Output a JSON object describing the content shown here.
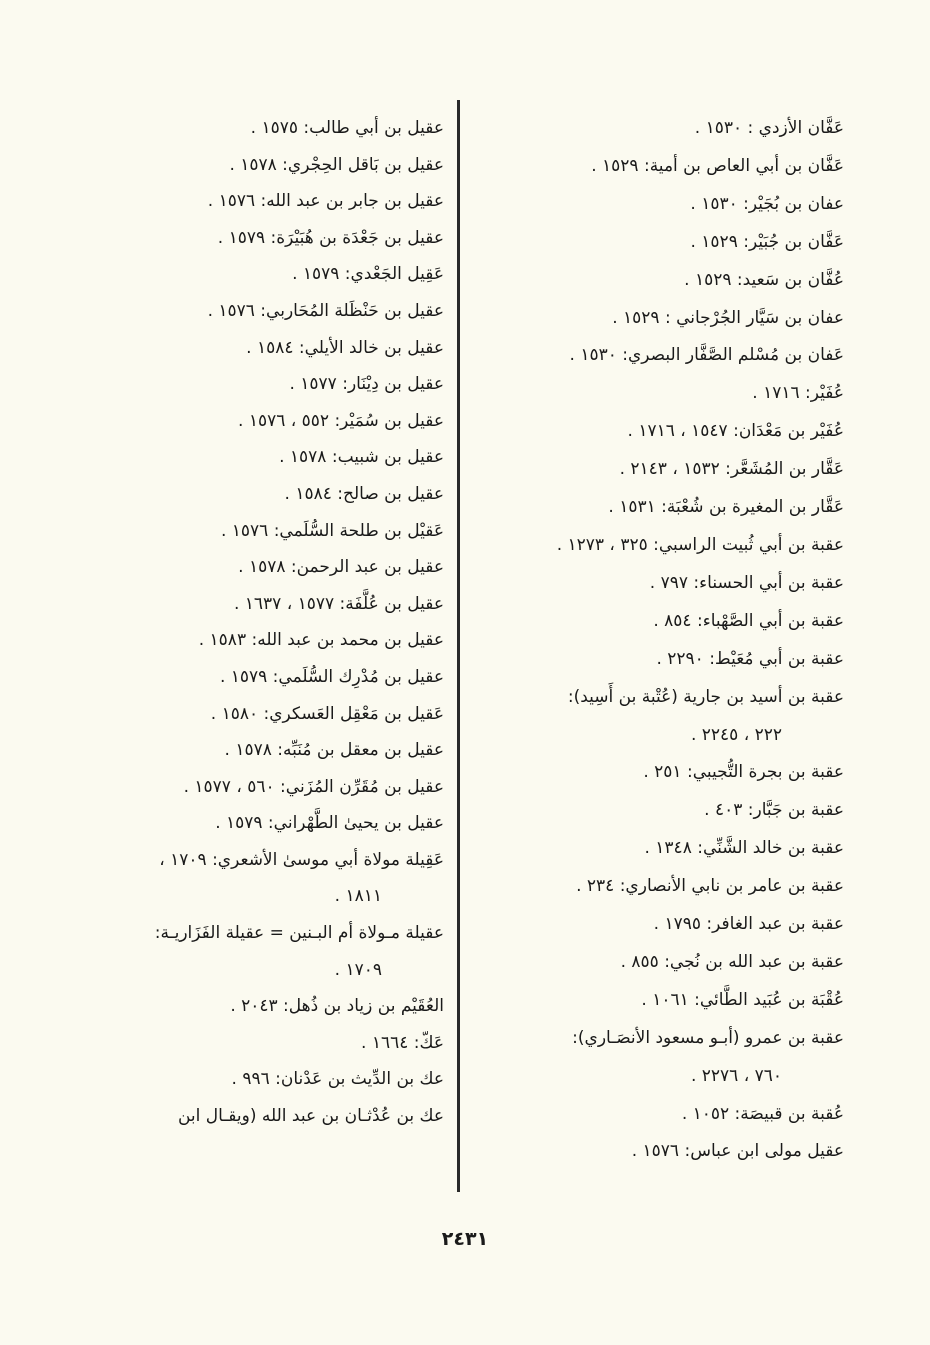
{
  "right_column": [
    {
      "text": "عَفَّان الأزدي : ١٥٣٠ ."
    },
    {
      "text": "عَفَّان بن أبي العاص بن أمية: ١٥٢٩ ."
    },
    {
      "text": "عفان بن بُجَيْر: ١٥٣٠ ."
    },
    {
      "text": "عَفَّان بن جُبَيْر: ١٥٢٩ ."
    },
    {
      "text": "عُفَّان بن سَعيد: ١٥٢٩ ."
    },
    {
      "text": "عفان بن سَيَّار الجُرْجاني : ١٥٢٩ ."
    },
    {
      "text": "عَفان بن مُسْلم الصَّفَّار البصري: ١٥٣٠ ."
    },
    {
      "text": "عُفَيْر: ١٧١٦ ."
    },
    {
      "text": "عُفَيْر بن مَعْدَان: ١٥٤٧ ، ١٧١٦ ."
    },
    {
      "text": "عَقَّار بن المُشَعَّر: ١٥٣٢ ، ٢١٤٣ ."
    },
    {
      "text": "عَقَّار بن المغيرة بن شُعْبَة: ١٥٣١ ."
    },
    {
      "text": "عقبة بن أبي ثُبيت الراسبي: ٣٢٥ ، ١٢٧٣ ."
    },
    {
      "text": "عقبة بن أبي الحسناء: ٧٩٧ ."
    },
    {
      "text": "عقبة بن أبي الصَّهْباء: ٨٥٤ ."
    },
    {
      "text": "عقبة بن أبي مُعَيْط: ٢٢٩٠ ."
    },
    {
      "text": "عقبة بن أسيد بن جارية (عُتْبة بن أَسِيد):",
      "cont": "٢٢٢ ، ٢٢٤٥ ."
    },
    {
      "text": "عقبة بن بجرة التُّجيبي: ٢٥١ ."
    },
    {
      "text": "عقبة بن جَبَّار: ٤٠٣ ."
    },
    {
      "text": "عقبة بن خالد الشَّنِّي: ١٣٤٨ ."
    },
    {
      "text": "عقبة بن عامر بن نابي الأنصاري: ٢٣٤ ."
    },
    {
      "text": "عقبة بن عبد الغافر: ١٧٩٥ ."
    },
    {
      "text": "عقبة بن عبد الله بن نُجي: ٨٥٥ ."
    },
    {
      "text": "عُقْبَة بن عُبَيد الطَّائي: ١٠٦١ ."
    },
    {
      "text": "عقبة بن عمرو (أبـو مسعود الأنصَـاري):",
      "cont": "٧٦٠ ، ٢٢٧٦ ."
    },
    {
      "text": "عُقبة بن قبيصَة: ١٠٥٢ ."
    },
    {
      "text": "عقيل مولى ابن عباس: ١٥٧٦ ."
    }
  ],
  "left_column": [
    {
      "text": "عقيل بن أبي طالب: ١٥٧٥ ."
    },
    {
      "text": "عقيل بن بَاقل الحِجْري: ١٥٧٨ ."
    },
    {
      "text": "عقيل بن جابر بن عبد الله: ١٥٧٦ ."
    },
    {
      "text": "عقيل بن جَعْدَة بن هُبَيْرَة: ١٥٧٩ ."
    },
    {
      "text": "عَقِيل الجَعْدي: ١٥٧٩ ."
    },
    {
      "text": "عقيل بن حَنْظَلة المُحَاربي: ١٥٧٦ ."
    },
    {
      "text": "عقيل بن خالد الأيلي: ١٥٨٤ ."
    },
    {
      "text": "عقيل بن دِيْنَار: ١٥٧٧ ."
    },
    {
      "text": "عقيل بن سُمَيْر: ٥٥٢ ، ١٥٧٦ ."
    },
    {
      "text": "عقيل بن شبيب: ١٥٧٨ ."
    },
    {
      "text": "عقيل بن صالح: ١٥٨٤ ."
    },
    {
      "text": "عَقيْل بن طلحة السُّلَمي: ١٥٧٦ ."
    },
    {
      "text": "عقيل بن عبد الرحمن: ١٥٧٨ ."
    },
    {
      "text": "عقيل بن عُلَّفَة: ١٥٧٧ ، ١٦٣٧ ."
    },
    {
      "text": "عقيل بن محمد بن عبد الله: ١٥٨٣ ."
    },
    {
      "text": "عقيل بن مُدْرِك السُّلَمي: ١٥٧٩ ."
    },
    {
      "text": "عَقيل بن مَعْقِل العَسكري: ١٥٨٠ ."
    },
    {
      "text": "عقيل بن معقل بن مُنَبِّه: ١٥٧٨ ."
    },
    {
      "text": "عقيل بن مُقَرِّن المُزَني: ٥٦٠ ، ١٥٧٧ ."
    },
    {
      "text": "عقيل بن يحيىٰ الطَّهْراني: ١٥٧٩ ."
    },
    {
      "text": "عَقِيلة مولاة أبي موسىٰ الأشعري: ١٧٠٩ ،",
      "cont": "١٨١١ ."
    },
    {
      "text": "عقيلة مـولاة أم البـنين = عقيلة الفَزَاريـة:",
      "cont": "١٧٠٩ ."
    },
    {
      "text": "العُقَيْم بن زياد بن ذُهل: ٢٠٤٣ ."
    },
    {
      "text": "عَكّ: ١٦٦٤ ."
    },
    {
      "text": "عك بن الدِّيث بن عَدْنان: ٩٩٦ ."
    },
    {
      "text": "عك بن عُدْثـان بن عبد الله (ويقـال ابن"
    }
  ],
  "page_number": "٢٤٣١"
}
